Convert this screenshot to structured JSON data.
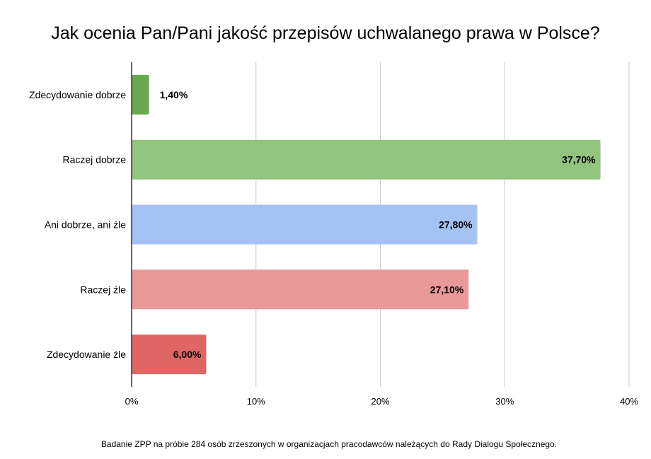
{
  "chart_data": {
    "type": "bar",
    "orientation": "horizontal",
    "title": "Jak ocenia Pan/Pani jakość przepisów uchwalanego prawa w Polsce?",
    "categories": [
      "Zdecydowanie dobrze",
      "Raczej dobrze",
      "Ani dobrze, ani źle",
      "Raczej źle",
      "Zdecydowanie źle"
    ],
    "values": [
      1.4,
      37.7,
      27.8,
      27.1,
      6.0
    ],
    "value_labels": [
      "1,40%",
      "37,70%",
      "27,80%",
      "27,10%",
      "6,00%"
    ],
    "colors": [
      "#6aa84f",
      "#93c47d",
      "#a4c2f4",
      "#ea9999",
      "#e06666"
    ],
    "xlim": [
      0,
      40
    ],
    "x_ticks": [
      0,
      10,
      20,
      30,
      40
    ],
    "x_tick_labels": [
      "0%",
      "10%",
      "20%",
      "30%",
      "40%"
    ],
    "xlabel": "",
    "ylabel": "",
    "grid": true,
    "legend": "none"
  },
  "footnote": "Badanie ZPP na próbie 284 osób zrzeszonych w organizacjach pracodawców należących do Rady Dialogu Społecznego."
}
